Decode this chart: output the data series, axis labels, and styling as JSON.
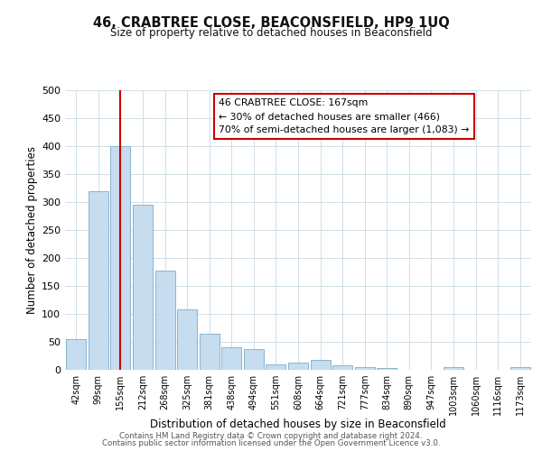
{
  "title": "46, CRABTREE CLOSE, BEACONSFIELD, HP9 1UQ",
  "subtitle": "Size of property relative to detached houses in Beaconsfield",
  "xlabel": "Distribution of detached houses by size in Beaconsfield",
  "ylabel": "Number of detached properties",
  "bin_labels": [
    "42sqm",
    "99sqm",
    "155sqm",
    "212sqm",
    "268sqm",
    "325sqm",
    "381sqm",
    "438sqm",
    "494sqm",
    "551sqm",
    "608sqm",
    "664sqm",
    "721sqm",
    "777sqm",
    "834sqm",
    "890sqm",
    "947sqm",
    "1003sqm",
    "1060sqm",
    "1116sqm",
    "1173sqm"
  ],
  "bar_heights": [
    55,
    320,
    400,
    295,
    178,
    108,
    65,
    40,
    37,
    10,
    13,
    18,
    8,
    5,
    3,
    0,
    0,
    5,
    0,
    0,
    5
  ],
  "bar_color": "#c6ddef",
  "bar_edge_color": "#8ab4d0",
  "background_color": "#ffffff",
  "grid_color": "#d0dfe8",
  "ylim": [
    0,
    500
  ],
  "yticks": [
    0,
    50,
    100,
    150,
    200,
    250,
    300,
    350,
    400,
    450,
    500
  ],
  "vline_x": 2,
  "vline_color": "#cc0000",
  "annotation_text_line1": "46 CRABTREE CLOSE: 167sqm",
  "annotation_text_line2": "← 30% of detached houses are smaller (466)",
  "annotation_text_line3": "70% of semi-detached houses are larger (1,083) →",
  "annotation_box_color": "#ffffff",
  "annotation_box_edge": "#cc0000",
  "footer_line1": "Contains HM Land Registry data © Crown copyright and database right 2024.",
  "footer_line2": "Contains public sector information licensed under the Open Government Licence v3.0."
}
